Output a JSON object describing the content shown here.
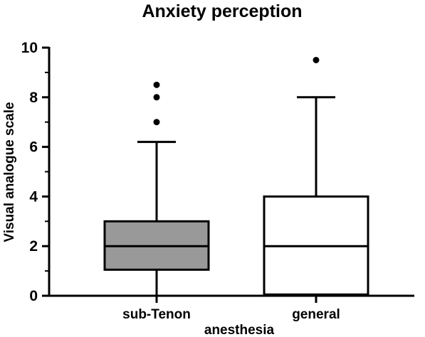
{
  "chart_data": {
    "type": "box",
    "title": "Anxiety perception",
    "xlabel": "anesthesia",
    "ylabel": "Visual analogue scale",
    "ylim": [
      0,
      10
    ],
    "yticks": [
      0,
      2,
      4,
      6,
      8,
      10
    ],
    "grid": false,
    "categories": [
      "sub-Tenon",
      "general"
    ],
    "boxes": [
      {
        "category": "sub-Tenon",
        "whisker_low": 0,
        "q1": 1.05,
        "median": 2.0,
        "q3": 3.0,
        "whisker_high": 6.2,
        "outliers": [
          7.0,
          8.0,
          8.5
        ],
        "fill": "#999999"
      },
      {
        "category": "general",
        "whisker_low": 0,
        "q1": 0.05,
        "median": 2.0,
        "q3": 4.0,
        "whisker_high": 8.0,
        "outliers": [
          9.5
        ],
        "fill": "#ffffff"
      }
    ]
  }
}
